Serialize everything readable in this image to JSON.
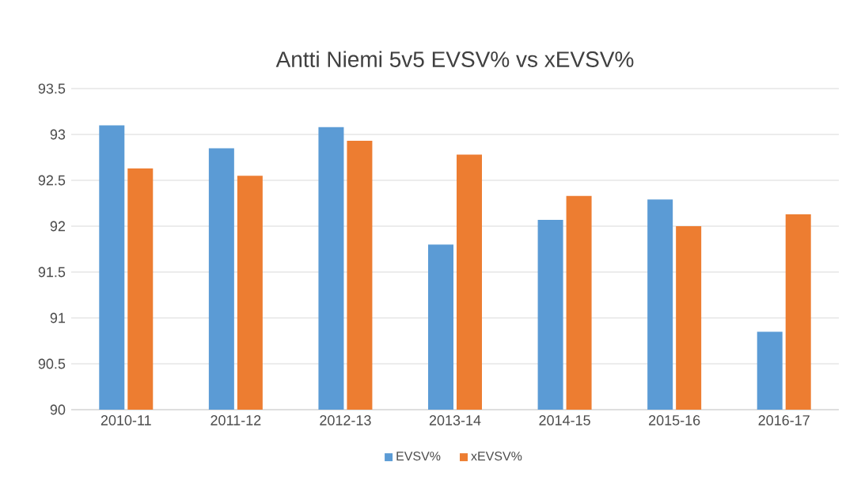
{
  "chart_data": {
    "type": "bar",
    "title": "Antti Niemi 5v5 EVSV% vs xEVSV%",
    "categories": [
      "2010-11",
      "2011-12",
      "2012-13",
      "2013-14",
      "2014-15",
      "2015-16",
      "2016-17"
    ],
    "series": [
      {
        "name": "EVSV%",
        "color": "#5b9bd5",
        "values": [
          93.1,
          92.85,
          93.08,
          91.8,
          92.07,
          92.29,
          90.85
        ]
      },
      {
        "name": "xEVSV%",
        "color": "#ed7d31",
        "values": [
          92.63,
          92.55,
          92.93,
          92.78,
          92.33,
          92.0,
          92.13
        ]
      }
    ],
    "ylim": [
      90,
      93.5
    ],
    "yticks": [
      90,
      90.5,
      91,
      91.5,
      92,
      92.5,
      93,
      93.5
    ],
    "grid": "y",
    "legend": "bottom"
  }
}
